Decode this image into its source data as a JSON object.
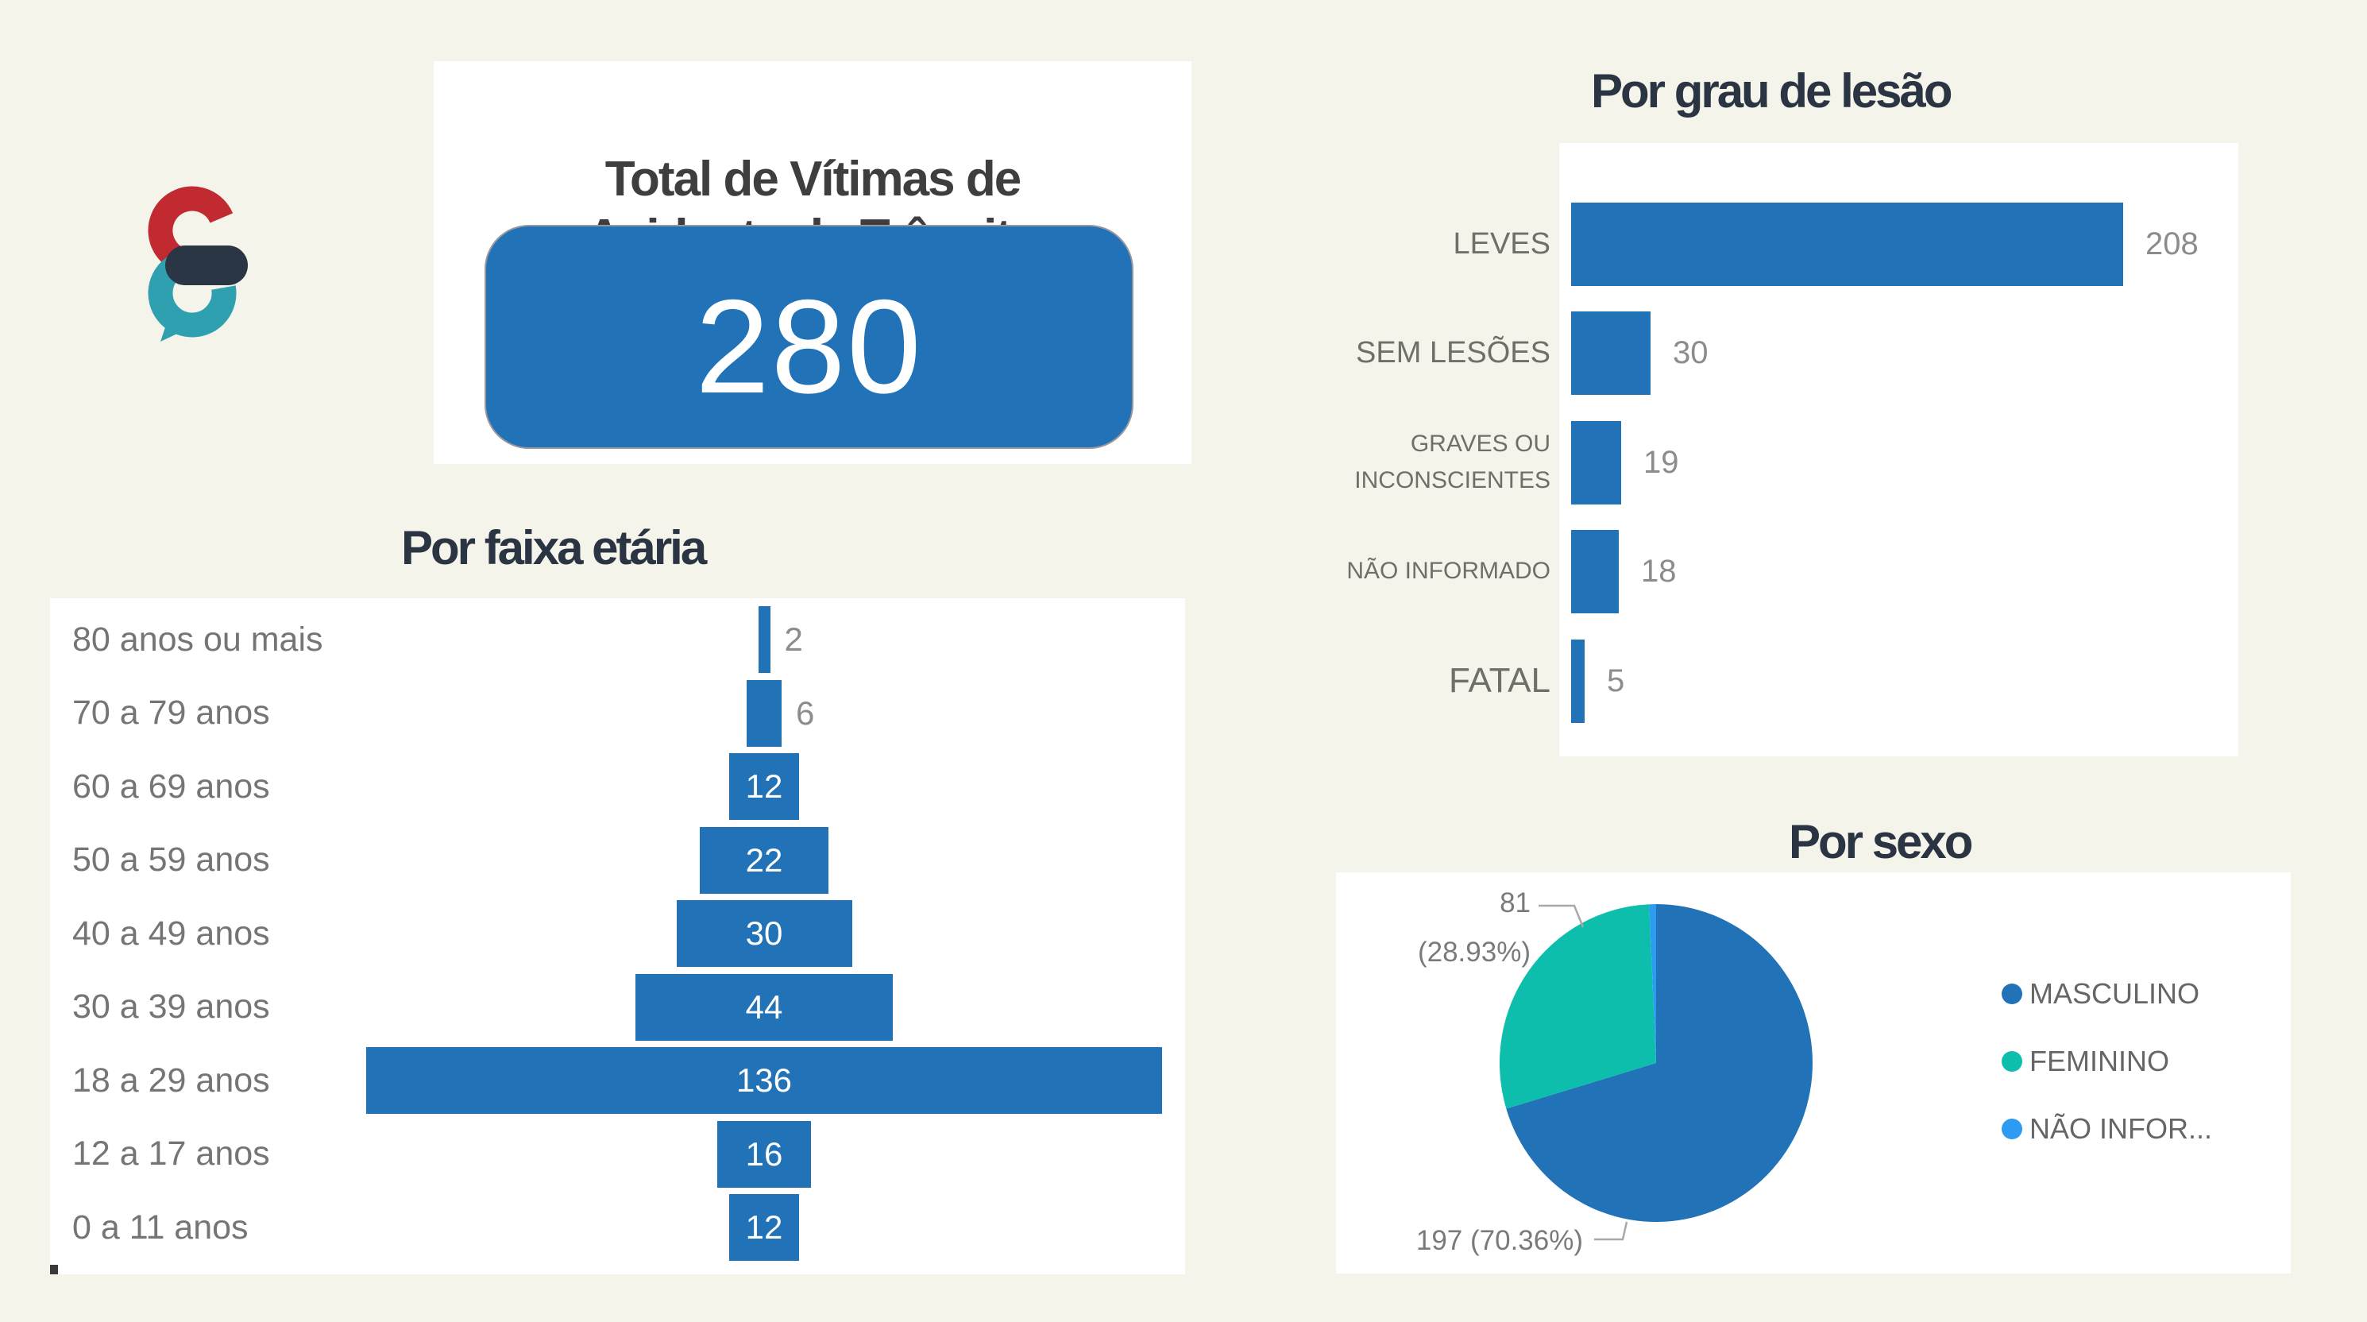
{
  "colors": {
    "background": "#F4F4EB",
    "bar_blue": "#2272B8",
    "title_navy": "#2B3442",
    "card_title_gray": "#3E3E3E",
    "value_gray": "#8C8C8C",
    "pie_masculino": "#2272B8",
    "pie_feminino": "#0DBEAC",
    "pie_nao_informado": "#2E9BF2",
    "logo_red": "#C12A30",
    "logo_teal": "#2EA0B0",
    "logo_navy": "#2B3645"
  },
  "logo": {
    "name": "speech-bubble-e-logo"
  },
  "chart_data": [
    {
      "type": "kpi",
      "title": "Total de Vítimas de Acidente de Trânsito",
      "title_line1": "Total de Vítimas de",
      "title_line2": "Acidente de Trânsito",
      "value": 280,
      "value_text": "280"
    },
    {
      "type": "bar",
      "orientation": "horizontal",
      "title": "Por grau de lesão",
      "categories": [
        "LEVES",
        "SEM LESÕES",
        "GRAVES OU INCONSCIENTES",
        "NÃO INFORMADO",
        "FATAL"
      ],
      "values": [
        208,
        30,
        19,
        18,
        5
      ],
      "xlim": [
        0,
        250
      ],
      "value_labels": "outside-right",
      "grid": false
    },
    {
      "type": "funnel",
      "title": "Por faixa etária",
      "categories": [
        "80 anos ou mais",
        "70 a 79 anos",
        "60 a 69 anos",
        "50 a 59 anos",
        "40 a 49 anos",
        "30 a 39 anos",
        "18 a 29 anos",
        "12 a 17 anos",
        "0 a 11 anos"
      ],
      "values": [
        2,
        6,
        12,
        22,
        30,
        44,
        136,
        16,
        12
      ],
      "value_labels": "inside-or-right",
      "grid": false
    },
    {
      "type": "pie",
      "title": "Por sexo",
      "labels": [
        "MASCULINO",
        "FEMININO",
        "NÃO INFOR..."
      ],
      "values": [
        197,
        81,
        2
      ],
      "pcts": [
        "70.36%",
        "28.93%",
        ""
      ],
      "colors": [
        "#2272B8",
        "#0DBEAC",
        "#2E9BF2"
      ],
      "legend_position": "right",
      "callout_feminino_value": "81",
      "callout_feminino_pct": "(28.93%)",
      "callout_masculino": "197 (70.36%)"
    }
  ]
}
